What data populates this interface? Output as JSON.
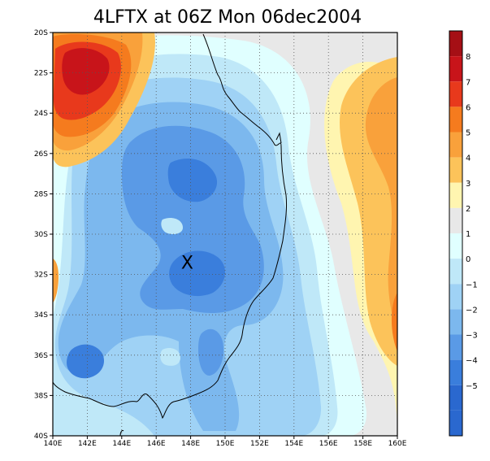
{
  "title": "4LFTX at 06Z Mon 06dec2004",
  "map": {
    "lon_range": [
      140,
      160
    ],
    "lat_range": [
      -40,
      -20
    ],
    "x_ticks": [
      {
        "value": 140,
        "label": "140E"
      },
      {
        "value": 142,
        "label": "142E"
      },
      {
        "value": 144,
        "label": "144E"
      },
      {
        "value": 146,
        "label": "146E"
      },
      {
        "value": 148,
        "label": "148E"
      },
      {
        "value": 150,
        "label": "150E"
      },
      {
        "value": 152,
        "label": "152E"
      },
      {
        "value": 154,
        "label": "154E"
      },
      {
        "value": 156,
        "label": "156E"
      },
      {
        "value": 158,
        "label": "158E"
      },
      {
        "value": 160,
        "label": "160E"
      }
    ],
    "y_ticks": [
      {
        "value": -20,
        "label": "20S"
      },
      {
        "value": -22,
        "label": "22S"
      },
      {
        "value": -24,
        "label": "24S"
      },
      {
        "value": -26,
        "label": "26S"
      },
      {
        "value": -28,
        "label": "28S"
      },
      {
        "value": -30,
        "label": "30S"
      },
      {
        "value": -32,
        "label": "32S"
      },
      {
        "value": -34,
        "label": "34S"
      },
      {
        "value": -36,
        "label": "36S"
      },
      {
        "value": -38,
        "label": "38S"
      },
      {
        "value": -40,
        "label": "40S"
      }
    ],
    "grid": "dotted",
    "marker": {
      "label": "X",
      "lon": 147.8,
      "lat": -31.4
    }
  },
  "colorbar": {
    "levels": [
      {
        "label": "",
        "color": "#a50f15"
      },
      {
        "label": "8",
        "color": "#c8141a"
      },
      {
        "label": "7",
        "color": "#e8391c"
      },
      {
        "label": "6",
        "color": "#f57b1e"
      },
      {
        "label": "5",
        "color": "#f9a13b"
      },
      {
        "label": "4",
        "color": "#fcc35a"
      },
      {
        "label": "3",
        "color": "#fff5b0"
      },
      {
        "label": "2",
        "color": "#e8e8e8"
      },
      {
        "label": "1",
        "color": "#e0ffff"
      },
      {
        "label": "0",
        "color": "#bfe8f8"
      },
      {
        "label": "−1",
        "color": "#9fd2f5"
      },
      {
        "label": "−2",
        "color": "#7cb8ee"
      },
      {
        "label": "−3",
        "color": "#5a9ae6"
      },
      {
        "label": "−4",
        "color": "#3a7edc"
      },
      {
        "label": "−5",
        "color": "#2a68cf"
      },
      {
        "label": "",
        "color": "#2a68cf"
      }
    ]
  },
  "colors": {
    "red_dark": "#c8141a",
    "red": "#e8391c",
    "orange": "#f57b1e",
    "orange_light": "#f9a13b",
    "yellow": "#fcc35a",
    "pale_yellow": "#fff5b0",
    "grey": "#e8e8e8",
    "cyan_pale": "#e0ffff",
    "blue0": "#bfe8f8",
    "blue1": "#9fd2f5",
    "blue2": "#7cb8ee",
    "blue3": "#5a9ae6",
    "blue4": "#3a7edc"
  }
}
